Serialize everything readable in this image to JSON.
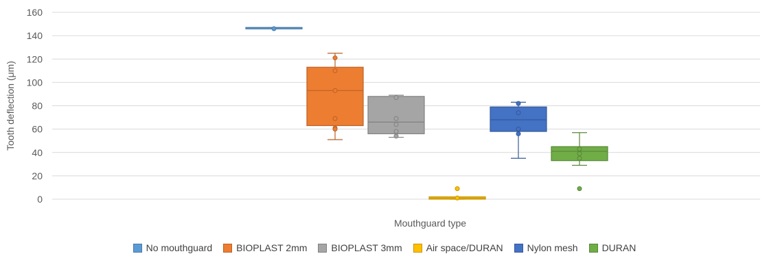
{
  "chart_data": {
    "type": "box",
    "xlabel": "Mouthguard type",
    "ylabel": "Tooth deflection (μm)",
    "ylim": [
      0,
      160
    ],
    "yticks": [
      0,
      20,
      40,
      60,
      80,
      100,
      120,
      140,
      160
    ],
    "grid": true,
    "legend_position": "bottom",
    "series": [
      {
        "name": "No mouthguard",
        "color": "#5B9BD5",
        "q1": 147,
        "median": 147,
        "q3": 147,
        "min": 147,
        "max": 147,
        "mean": null,
        "points": [
          146
        ]
      },
      {
        "name": "BIOPLAST 2mm",
        "color": "#ED7D31",
        "q1": 63,
        "median": 93,
        "q3": 113,
        "min": 51,
        "max": 125,
        "mean": null,
        "points": [
          121,
          110,
          93,
          69,
          61,
          60
        ]
      },
      {
        "name": "BIOPLAST 3mm",
        "color": "#A5A5A5",
        "q1": 56,
        "median": 66,
        "q3": 88,
        "min": 53,
        "max": 89,
        "mean": null,
        "points": [
          87,
          69,
          64,
          58,
          54
        ]
      },
      {
        "name": "Air space/DURAN",
        "color": "#FFC000",
        "q1": 0,
        "median": 1,
        "q3": 2,
        "min": 0,
        "max": 2,
        "mean": null,
        "points": [
          9,
          1
        ]
      },
      {
        "name": "Nylon mesh",
        "color": "#4472C4",
        "q1": 58,
        "median": 68,
        "q3": 79,
        "min": 35,
        "max": 83,
        "mean": null,
        "points": [
          82,
          74,
          60,
          56
        ]
      },
      {
        "name": "DURAN",
        "color": "#70AD47",
        "q1": 33,
        "median": 41,
        "q3": 45,
        "min": 29,
        "max": 57,
        "mean": null,
        "points": [
          43,
          39,
          35,
          9
        ]
      }
    ]
  }
}
